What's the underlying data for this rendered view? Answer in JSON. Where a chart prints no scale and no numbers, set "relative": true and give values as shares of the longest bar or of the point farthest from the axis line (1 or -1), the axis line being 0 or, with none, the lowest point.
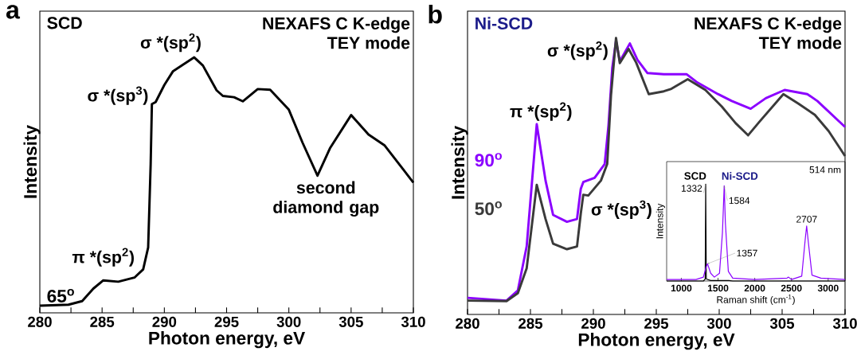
{
  "chart_data": [
    {
      "type": "line",
      "title": "NEXAFS C K-edge",
      "subtitle": "TEY mode",
      "xlabel": "Photon energy, eV",
      "ylabel": "Intensity",
      "relative": true,
      "xlim": [
        280,
        310
      ],
      "xticks": [
        280,
        {
          "value": 282.5,
          "label": null
        },
        285,
        {
          "value": 287.5,
          "label": null
        },
        290,
        {
          "value": 292.5,
          "label": null
        },
        295,
        {
          "value": 297.5,
          "label": null
        },
        300,
        {
          "value": 302.5,
          "label": null
        },
        305,
        {
          "value": 307.5,
          "label": null
        },
        310
      ],
      "annotations": [
        "a",
        "SCD",
        {
          "text": "σ *(sp$^{2}$)",
          "x": 292.4,
          "y": 1.0
        },
        {
          "text": "σ *(sp$^{3}$)",
          "x": 289.0,
          "y": 0.817
        },
        {
          "text": "π *(sp$^{2}$)",
          "x": 285.1,
          "y": 0.127
        },
        {
          "text": "second diamond gap",
          "x": 302.3,
          "y": 0.537
        }
      ],
      "series": [
        {
          "name": "65$^{o}$",
          "color": "#000000",
          "x": [
            280,
            282.3,
            283.4,
            284.3,
            285.1,
            286.3,
            287.6,
            288.3,
            288.7,
            288.9,
            289.0,
            289.3,
            290.0,
            290.7,
            291.4,
            292.4,
            293.1,
            294.2,
            294.7,
            295.6,
            296.3,
            297.5,
            298.5,
            300.0,
            301.1,
            302.3,
            303.3,
            305.0,
            306.4,
            307.7,
            310
          ],
          "values": [
            0.028,
            0.032,
            0.046,
            0.095,
            0.127,
            0.122,
            0.138,
            0.17,
            0.256,
            0.58,
            0.817,
            0.825,
            0.892,
            0.946,
            0.968,
            1.0,
            0.968,
            0.871,
            0.849,
            0.844,
            0.828,
            0.876,
            0.873,
            0.795,
            0.666,
            0.537,
            0.644,
            0.774,
            0.698,
            0.655,
            0.51
          ]
        }
      ]
    },
    {
      "type": "line",
      "title": "NEXAFS C K-edge",
      "subtitle": "TEY mode",
      "xlabel": "Photon energy, eV",
      "ylabel": "Intensity",
      "relative": true,
      "xlim": [
        280,
        310
      ],
      "xticks": [
        280,
        {
          "value": 282.5,
          "label": null
        },
        285,
        {
          "value": 287.5,
          "label": null
        },
        290,
        {
          "value": 292.5,
          "label": null
        },
        295,
        {
          "value": 297.5,
          "label": null
        },
        300,
        {
          "value": 302.5,
          "label": null
        },
        305,
        {
          "value": 307.5,
          "label": null
        },
        310
      ],
      "annotations": [
        "b",
        "Ni-SCD",
        {
          "text": "π *(sp$^{2}$)",
          "x": 285.5,
          "y": 0.688
        },
        {
          "text": "σ *(sp$^{2}$)",
          "x": 291.8,
          "y": 1.0
        },
        {
          "text": "σ *(sp$^{3}$)",
          "x": 289.2,
          "y": 0.433
        }
      ],
      "series": [
        {
          "name": "90$^{o}$",
          "color": "#8b00ff",
          "x": [
            280,
            283.1,
            284.0,
            284.7,
            285.5,
            286.2,
            286.8,
            287.9,
            288.7,
            289.0,
            289.2,
            290.1,
            290.9,
            291.2,
            291.5,
            291.8,
            292.1,
            292.9,
            293.5,
            294.3,
            295.6,
            297.4,
            298.2,
            299.9,
            301.0,
            302.5,
            303.7,
            305.2,
            307.0,
            307.8,
            310
          ],
          "values": [
            0.06,
            0.05,
            0.087,
            0.246,
            0.688,
            0.484,
            0.36,
            0.335,
            0.345,
            0.454,
            0.479,
            0.494,
            0.544,
            0.683,
            0.891,
            0.99,
            0.916,
            0.98,
            0.921,
            0.873,
            0.869,
            0.869,
            0.841,
            0.797,
            0.772,
            0.744,
            0.782,
            0.812,
            0.797,
            0.772,
            0.678
          ]
        },
        {
          "name": "50$^{o}$",
          "color": "#3a3a3a",
          "x": [
            280,
            283.1,
            284.0,
            284.7,
            285.5,
            286.2,
            286.8,
            287.9,
            288.7,
            289.0,
            289.2,
            289.6,
            290.6,
            291.1,
            291.4,
            291.8,
            292.1,
            292.8,
            293.4,
            294.4,
            295.6,
            296.2,
            297.5,
            298.9,
            300.2,
            301.3,
            302.3,
            303.2,
            305.1,
            306.3,
            307.6,
            308.7,
            310
          ],
          "values": [
            0.05,
            0.048,
            0.077,
            0.167,
            0.469,
            0.345,
            0.256,
            0.236,
            0.246,
            0.365,
            0.433,
            0.43,
            0.484,
            0.544,
            0.792,
            1.0,
            0.909,
            0.96,
            0.911,
            0.797,
            0.807,
            0.816,
            0.851,
            0.812,
            0.752,
            0.692,
            0.648,
            0.697,
            0.797,
            0.762,
            0.722,
            0.663,
            0.573
          ]
        }
      ]
    },
    {
      "type": "line",
      "xlabel": "Raman shift (cm$^{-1}$)",
      "ylabel": "Intensity",
      "relative": true,
      "xlim": [
        800,
        3230
      ],
      "xticks": [
        1000,
        1500,
        2000,
        2500,
        3000
      ],
      "annotations": [
        "514 nm",
        {
          "text": "1332",
          "x": 1332,
          "y": 1.0
        },
        {
          "text": "1584",
          "x": 1584,
          "y": 0.983
        },
        {
          "text": "1357",
          "x": 1357,
          "y": 0.178
        },
        {
          "text": "2707",
          "x": 2707,
          "y": 0.567
        }
      ],
      "series": [
        {
          "name": "SCD",
          "color": "#000000",
          "x": [
            800,
            1300,
            1325,
            1332,
            1340,
            1400,
            1650,
            1700,
            3230
          ],
          "values": [
            0,
            0,
            0.02,
            1.0,
            0.02,
            0.005,
            0.005,
            0,
            0
          ]
        },
        {
          "name": "Ni-SCD",
          "color": "#8b00ff",
          "x": [
            800,
            1200,
            1300,
            1340,
            1357,
            1400,
            1450,
            1520,
            1560,
            1584,
            1600,
            1640,
            1700,
            2000,
            2440,
            2460,
            2500,
            2640,
            2690,
            2707,
            2730,
            2780,
            2900,
            3230
          ],
          "values": [
            0.015,
            0.015,
            0.04,
            0.15,
            0.178,
            0.08,
            0.04,
            0.08,
            0.5,
            0.983,
            0.6,
            0.1,
            0.03,
            0.015,
            0.03,
            0.04,
            0.015,
            0.05,
            0.45,
            0.567,
            0.4,
            0.06,
            0.03,
            0.015
          ]
        }
      ]
    }
  ]
}
